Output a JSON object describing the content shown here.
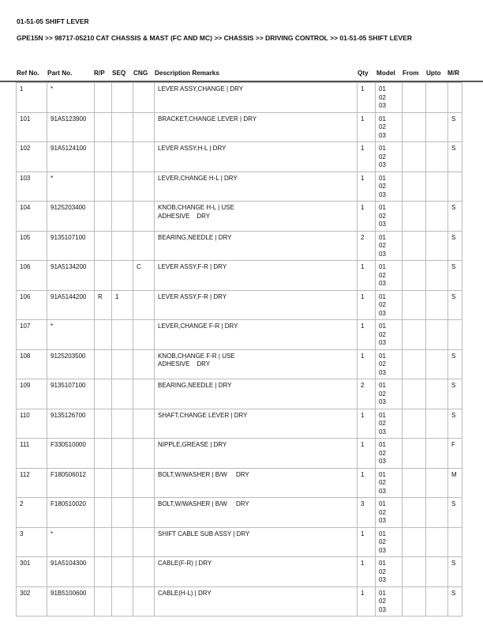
{
  "title": "01-51-05 SHIFT LEVER",
  "breadcrumb": "GPE15N >> 98717-05210 CAT CHASSIS & MAST (FC AND MC) >> CHASSIS >> DRIVING CONTROL >> 01-51-05 SHIFT LEVER",
  "columns": [
    "Ref No.",
    "Part No.",
    "R/P",
    "SEQ",
    "CNG",
    "Description Remarks",
    "Qty",
    "Model",
    "From",
    "Upto",
    "M/R"
  ],
  "rows": [
    {
      "ref": "1",
      "part": "*",
      "rp": "",
      "seq": "",
      "cng": "",
      "desc": "LEVER ASSY,CHANGE | DRY",
      "qty": "1",
      "model": "01\n02\n03",
      "from": "",
      "upto": "",
      "mr": ""
    },
    {
      "ref": "101",
      "part": "91A5123900",
      "rp": "",
      "seq": "",
      "cng": "",
      "desc": "BRACKET,CHANGE LEVER | DRY",
      "qty": "1",
      "model": "01\n02\n03",
      "from": "",
      "upto": "",
      "mr": "S"
    },
    {
      "ref": "102",
      "part": "91A5124100",
      "rp": "",
      "seq": "",
      "cng": "",
      "desc": "LEVER ASSY,H-L | DRY",
      "qty": "1",
      "model": "01\n02\n03",
      "from": "",
      "upto": "",
      "mr": "S"
    },
    {
      "ref": "103",
      "part": "*",
      "rp": "",
      "seq": "",
      "cng": "",
      "desc": "LEVER,CHANGE H-L | DRY",
      "qty": "1",
      "model": "01\n02\n03",
      "from": "",
      "upto": "",
      "mr": ""
    },
    {
      "ref": "104",
      "part": "9125203400",
      "rp": "",
      "seq": "",
      "cng": "",
      "desc": "KNOB,CHANGE H-L | USE\nADHESIVE    DRY",
      "qty": "1",
      "model": "01\n02\n03",
      "from": "",
      "upto": "",
      "mr": "S"
    },
    {
      "ref": "105",
      "part": "9135107100",
      "rp": "",
      "seq": "",
      "cng": "",
      "desc": "BEARING,NEEDLE | DRY",
      "qty": "2",
      "model": "01\n02\n03",
      "from": "",
      "upto": "",
      "mr": "S"
    },
    {
      "ref": "106",
      "part": "91A5134200",
      "rp": "",
      "seq": "",
      "cng": "C",
      "desc": "LEVER ASSY,F-R | DRY",
      "qty": "1",
      "model": "01\n02\n03",
      "from": "",
      "upto": "",
      "mr": "S"
    },
    {
      "ref": "106",
      "part": "91A5144200",
      "rp": "R",
      "seq": "1",
      "cng": "",
      "desc": "LEVER ASSY,F-R | DRY",
      "qty": "1",
      "model": "01\n02\n03",
      "from": "",
      "upto": "",
      "mr": "S"
    },
    {
      "ref": "107",
      "part": "*",
      "rp": "",
      "seq": "",
      "cng": "",
      "desc": "LEVER,CHANGE F-R | DRY",
      "qty": "1",
      "model": "01\n02\n03",
      "from": "",
      "upto": "",
      "mr": ""
    },
    {
      "ref": "108",
      "part": "9125203500",
      "rp": "",
      "seq": "",
      "cng": "",
      "desc": "KNOB,CHANGE F-R | USE\nADHESIVE    DRY",
      "qty": "1",
      "model": "01\n02\n03",
      "from": "",
      "upto": "",
      "mr": "S"
    },
    {
      "ref": "109",
      "part": "9135107100",
      "rp": "",
      "seq": "",
      "cng": "",
      "desc": "BEARING,NEEDLE | DRY",
      "qty": "2",
      "model": "01\n02\n03",
      "from": "",
      "upto": "",
      "mr": "S"
    },
    {
      "ref": "110",
      "part": "9135126700",
      "rp": "",
      "seq": "",
      "cng": "",
      "desc": "SHAFT,CHANGE LEVER | DRY",
      "qty": "1",
      "model": "01\n02\n03",
      "from": "",
      "upto": "",
      "mr": "S"
    },
    {
      "ref": "111",
      "part": "F330510000",
      "rp": "",
      "seq": "",
      "cng": "",
      "desc": "NIPPLE,GREASE | DRY",
      "qty": "1",
      "model": "01\n02\n03",
      "from": "",
      "upto": "",
      "mr": "F"
    },
    {
      "ref": "112",
      "part": "F180506012",
      "rp": "",
      "seq": "",
      "cng": "",
      "desc": "BOLT,W/WASHER | B/W     DRY",
      "qty": "1",
      "model": "01\n02\n03",
      "from": "",
      "upto": "",
      "mr": "M"
    },
    {
      "ref": "2",
      "part": "F180510020",
      "rp": "",
      "seq": "",
      "cng": "",
      "desc": "BOLT,W/WASHER | B/W     DRY",
      "qty": "3",
      "model": "01\n02\n03",
      "from": "",
      "upto": "",
      "mr": "S"
    },
    {
      "ref": "3",
      "part": "*",
      "rp": "",
      "seq": "",
      "cng": "",
      "desc": "SHIFT CABLE SUB ASSY | DRY",
      "qty": "1",
      "model": "01\n02\n03",
      "from": "",
      "upto": "",
      "mr": ""
    },
    {
      "ref": "301",
      "part": "91A5104300",
      "rp": "",
      "seq": "",
      "cng": "",
      "desc": "CABLE(F-R) | DRY",
      "qty": "1",
      "model": "01\n02\n03",
      "from": "",
      "upto": "",
      "mr": "S"
    },
    {
      "ref": "302",
      "part": "91B5100600",
      "rp": "",
      "seq": "",
      "cng": "",
      "desc": "CABLE(H-L) | DRY",
      "qty": "1",
      "model": "01\n02\n03",
      "from": "",
      "upto": "",
      "mr": "S"
    }
  ]
}
